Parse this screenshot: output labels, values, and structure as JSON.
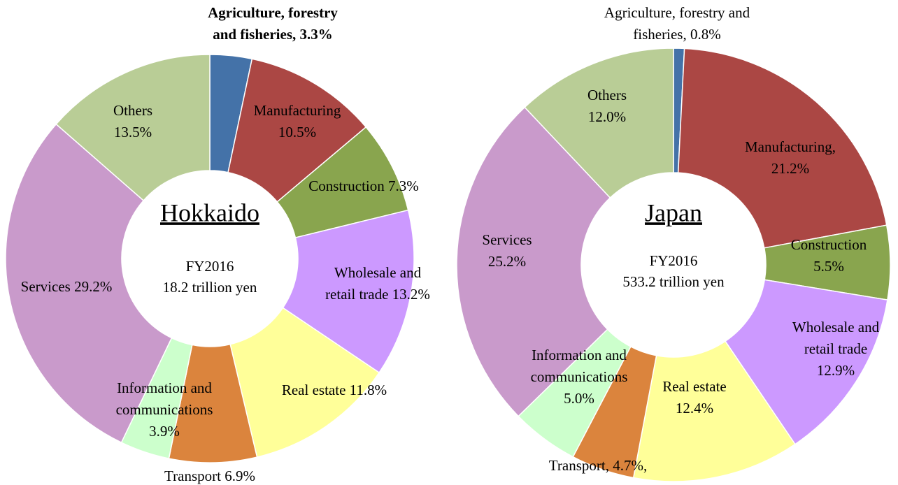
{
  "chart_data": [
    {
      "type": "donut",
      "center_title": "Hokkaido",
      "center_lines": [
        "FY2016",
        "18.2 trillion yen"
      ],
      "values": [
        3.3,
        10.5,
        7.3,
        13.2,
        11.8,
        6.9,
        3.9,
        29.2,
        13.5
      ],
      "value_labels": [
        "Agriculture, forestry\nand fisheries, 3.3%",
        "Manufacturing\n10.5%",
        "Construction 7.3%",
        "Wholesale and\nretail trade 13.2%",
        "Real estate 11.8%",
        "Transport 6.9%",
        "Information and\ncommunications\n3.9%",
        "Services 29.2%",
        "Others\n13.5%"
      ],
      "colors": [
        "#4472a8",
        "#ab4744",
        "#89a54e",
        "#cc99ff",
        "#ffff99",
        "#db843d",
        "#ccffcc",
        "#c99acb",
        "#b9cd96"
      ]
    },
    {
      "type": "donut",
      "center_title": "Japan",
      "center_lines": [
        "FY2016",
        "533.2 trillion yen"
      ],
      "values": [
        0.8,
        21.2,
        5.5,
        12.9,
        12.4,
        4.7,
        5.0,
        25.2,
        12.0
      ],
      "value_labels": [
        "Agriculture, forestry and\nfisheries, 0.8%",
        "Manufacturing,\n21.2%",
        "Construction\n5.5%",
        "Wholesale and\nretail trade\n12.9%",
        "Real estate\n12.4%",
        "Transport, 4.7%,",
        "Information and\ncommunications\n5.0%",
        "Services\n25.2%",
        "Others\n12.0%"
      ],
      "colors": [
        "#4472a8",
        "#ab4744",
        "#89a54e",
        "#cc99ff",
        "#ffff99",
        "#db843d",
        "#ccffcc",
        "#c99acb",
        "#b9cd96"
      ]
    }
  ]
}
